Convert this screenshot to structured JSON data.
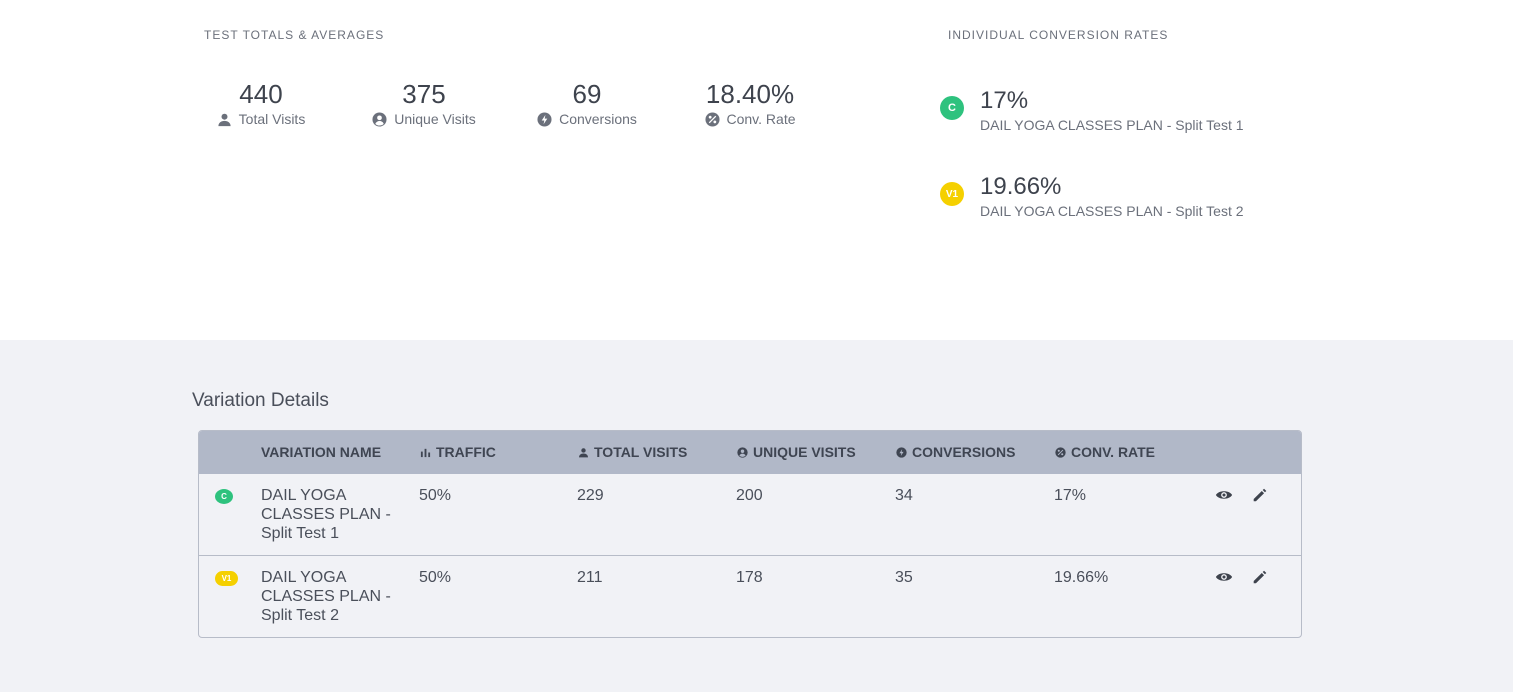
{
  "totals": {
    "title": "TEST TOTALS & AVERAGES",
    "stats": [
      {
        "value": "440",
        "label": "Total Visits",
        "icon": "user-icon"
      },
      {
        "value": "375",
        "label": "Unique Visits",
        "icon": "user-circle-icon"
      },
      {
        "value": "69",
        "label": "Conversions",
        "icon": "bolt-icon"
      },
      {
        "value": "18.40%",
        "label": "Conv. Rate",
        "icon": "percent-icon"
      }
    ]
  },
  "individual": {
    "title": "INDIVIDUAL CONVERSION RATES",
    "items": [
      {
        "badge": "C",
        "badge_color": "#2ec27e",
        "rate": "17%",
        "name": "DAIL YOGA CLASSES PLAN - Split Test 1"
      },
      {
        "badge": "V1",
        "badge_color": "#f5d000",
        "rate": "19.66%",
        "name": "DAIL YOGA CLASSES PLAN - Split Test 2"
      }
    ]
  },
  "variation_details": {
    "title": "Variation Details",
    "columns": {
      "name": "VARIATION NAME",
      "traffic": "TRAFFIC",
      "total_visits": "TOTAL VISITS",
      "unique_visits": "UNIQUE VISITS",
      "conversions": "CONVERSIONS",
      "conv_rate": "CONV. RATE"
    },
    "rows": [
      {
        "badge": "C",
        "badge_color": "#2ec27e",
        "name": "DAIL YOGA CLASSES PLAN - Split Test 1",
        "traffic": "50%",
        "total_visits": "229",
        "unique_visits": "200",
        "conversions": "34",
        "conv_rate": "17%"
      },
      {
        "badge": "V1",
        "badge_color": "#f5d000",
        "name": "DAIL YOGA CLASSES PLAN - Split Test 2",
        "traffic": "50%",
        "total_visits": "211",
        "unique_visits": "178",
        "conversions": "35",
        "conv_rate": "19.66%"
      }
    ]
  },
  "colors": {
    "control": "#2ec27e",
    "variant": "#f5d000",
    "table_header": "#b1b8c8",
    "page_bottom": "#f1f2f6"
  }
}
